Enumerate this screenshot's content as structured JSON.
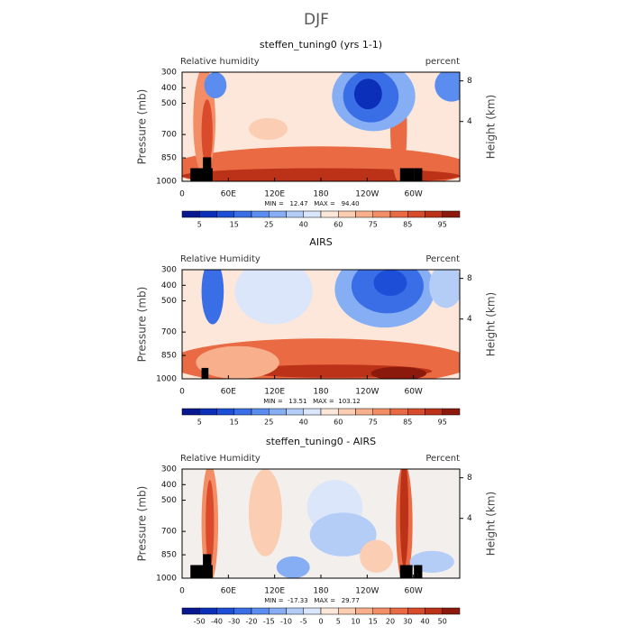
{
  "title": "DJF",
  "pressure_ticks": [
    300,
    400,
    500,
    700,
    850,
    1000
  ],
  "height_ticks": [
    8,
    4
  ],
  "lon_ticks": [
    {
      "value": 0,
      "label": "0"
    },
    {
      "value": 60,
      "label": "60E"
    },
    {
      "value": 120,
      "label": "120E"
    },
    {
      "value": 180,
      "label": "180"
    },
    {
      "value": 240,
      "label": "120W"
    },
    {
      "value": 300,
      "label": "60W"
    }
  ],
  "panels": [
    {
      "title": "steffen_tuning0 (yrs 1-1)",
      "left_label": "Relative humidity",
      "right_label": "percent",
      "y_label": "Pressure (mb)",
      "y2_label": "Height (km)",
      "stats": "MIN =   12.47   MAX =   94.40",
      "colorbar": {
        "ticks": [
          5,
          15,
          25,
          40,
          60,
          75,
          85,
          95
        ],
        "colors": [
          "#07178f",
          "#0b2fb8",
          "#1c4ed8",
          "#3a6ee6",
          "#5b8df0",
          "#86aef4",
          "#b3cdf7",
          "#dbe6fa",
          "#fde7da",
          "#fbcdb3",
          "#f8b08c",
          "#f28d66",
          "#e96a43",
          "#d94b2a",
          "#bb3219",
          "#8c1a0c"
        ]
      }
    },
    {
      "title": "AIRS",
      "left_label": "Relative Humidity",
      "right_label": "Percent",
      "y_label": "Pressure (mb)",
      "y2_label": "Height (km)",
      "stats": "MIN =   13.51   MAX =  103.12",
      "colorbar": {
        "ticks": [
          5,
          15,
          25,
          40,
          60,
          75,
          85,
          95
        ],
        "colors": [
          "#07178f",
          "#0b2fb8",
          "#1c4ed8",
          "#3a6ee6",
          "#5b8df0",
          "#86aef4",
          "#b3cdf7",
          "#dbe6fa",
          "#fde7da",
          "#fbcdb3",
          "#f8b08c",
          "#f28d66",
          "#e96a43",
          "#d94b2a",
          "#bb3219",
          "#8c1a0c"
        ]
      }
    },
    {
      "title": "steffen_tuning0 - AIRS",
      "left_label": "Relative Humidity",
      "right_label": "Percent",
      "y_label": "Pressure (mb)",
      "y2_label": "Height (km)",
      "stats": "MIN =  -17.33   MAX =   29.77",
      "colorbar": {
        "ticks": [
          -50,
          -40,
          -30,
          -20,
          -15,
          -10,
          -5,
          0,
          5,
          10,
          15,
          20,
          30,
          40,
          50
        ],
        "colors": [
          "#07178f",
          "#0b2fb8",
          "#1c4ed8",
          "#3a6ee6",
          "#5b8df0",
          "#86aef4",
          "#b3cdf7",
          "#dbe6fa",
          "#fde7da",
          "#fbcdb3",
          "#f8b08c",
          "#f28d66",
          "#e96a43",
          "#d94b2a",
          "#bb3219",
          "#8c1a0c"
        ]
      }
    }
  ]
}
